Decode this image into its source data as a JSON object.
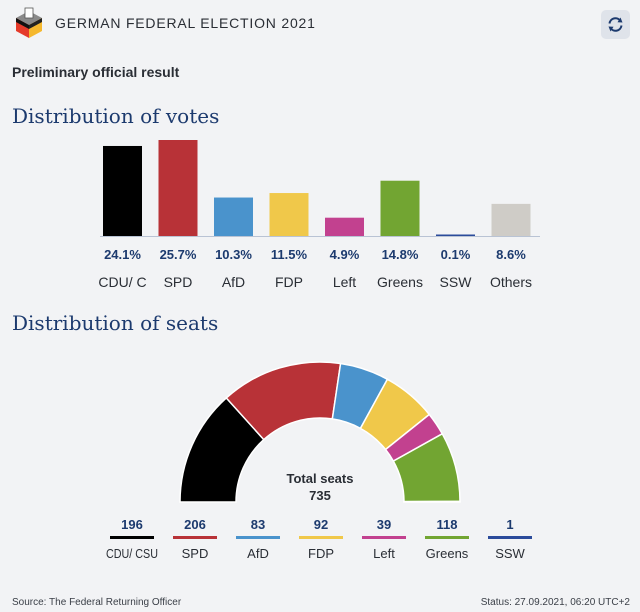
{
  "header": {
    "app_title": "GERMAN FEDERAL ELECTION 2021",
    "logo_icon": "ballot-box-icon",
    "refresh_icon": "refresh-icon"
  },
  "subtitle": "Preliminary official result",
  "votes_title": "Distribution of votes",
  "seats_title": "Distribution of seats",
  "chart_data": [
    {
      "type": "bar",
      "title": "Distribution of votes",
      "categories": [
        "CDU/ C",
        "SPD",
        "AfD",
        "FDP",
        "Left",
        "Greens",
        "SSW",
        "Others"
      ],
      "values": [
        24.1,
        25.7,
        10.3,
        11.5,
        4.9,
        14.8,
        0.1,
        8.6
      ],
      "labels": [
        "24.1%",
        "25.7%",
        "10.3%",
        "11.5%",
        "4.9%",
        "14.8%",
        "0.1%",
        "8.6%"
      ],
      "colors": [
        "#000000",
        "#b83237",
        "#4a93cc",
        "#f0c84a",
        "#c2418f",
        "#72a532",
        "#2b4b9b",
        "#cfccc7"
      ],
      "ylim": [
        0,
        25.7
      ]
    },
    {
      "type": "pie",
      "subtype": "half-donut",
      "title": "Distribution of seats",
      "categories": [
        "CDU/ CSU",
        "SPD",
        "AfD",
        "FDP",
        "Left",
        "Greens",
        "SSW"
      ],
      "values": [
        196,
        206,
        83,
        92,
        39,
        118,
        1
      ],
      "colors": [
        "#000000",
        "#b83237",
        "#4a93cc",
        "#f0c84a",
        "#c2418f",
        "#72a532",
        "#2b4b9b"
      ],
      "total_label": "Total seats",
      "total_value": "735"
    }
  ],
  "footer": {
    "source": "Source: The Federal Returning Officer",
    "status": "Status: 27.09.2021, 06:20 UTC+2"
  }
}
